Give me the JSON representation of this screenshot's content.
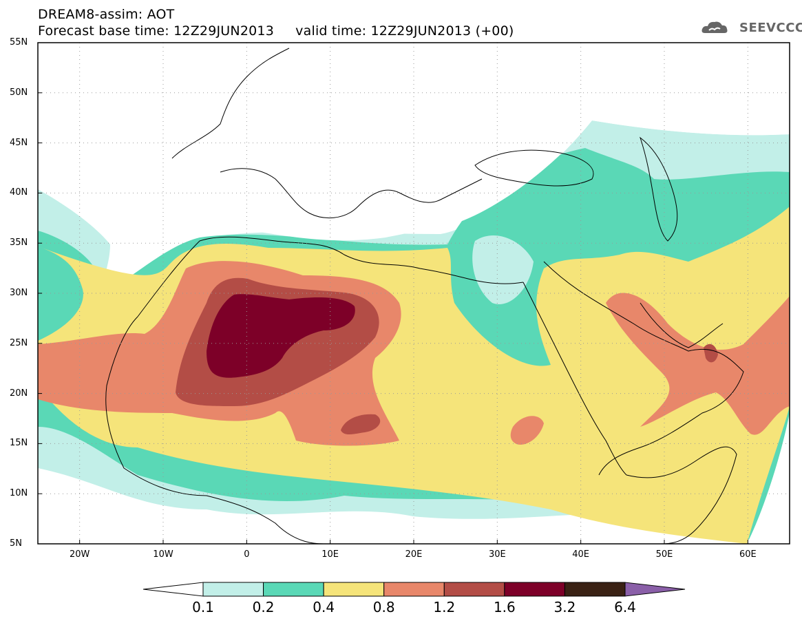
{
  "title_line1": "DREAM8-assim: AOT",
  "title_line2": "Forecast base time: 12Z29JUN2013     valid time: 12Z29JUN2013 (+00)",
  "logo_text": "SEEVCCC",
  "lat_labels": [
    "55N",
    "50N",
    "45N",
    "40N",
    "35N",
    "30N",
    "25N",
    "20N",
    "15N",
    "10N",
    "5N"
  ],
  "lon_labels": [
    "20W",
    "10W",
    "0",
    "10E",
    "20E",
    "30E",
    "40E",
    "50E",
    "60E"
  ],
  "colorbar": {
    "labels": [
      "0.1",
      "0.2",
      "0.4",
      "0.8",
      "1.2",
      "1.6",
      "3.2",
      "6.4"
    ],
    "colors": [
      "#c2efe8",
      "#5ad8b6",
      "#f5e47a",
      "#e8876a",
      "#b34d46",
      "#7d0028",
      "#3a2114",
      "#8a5fa8"
    ]
  },
  "extent": {
    "lon_min": -25,
    "lon_max": 65,
    "lat_min": 5,
    "lat_max": 55
  }
}
